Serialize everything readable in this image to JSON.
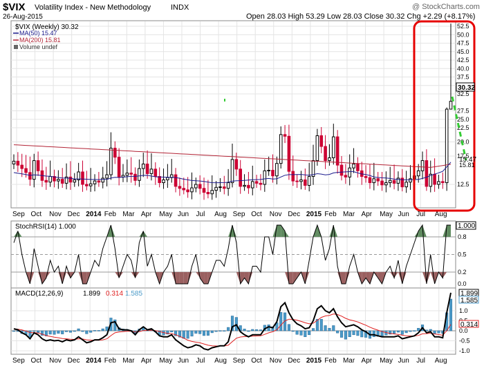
{
  "header": {
    "symbol": "$VIX",
    "name": "Volatility Index - New Methodology",
    "exchange": "INDX",
    "date": "26-Aug-2015",
    "ohlc": "Open 28.03  High 53.29  Low 28.03  Close 30.32  Chg +2.29 (+8.17%)",
    "watermark": "@ StockCharts.com"
  },
  "legend": {
    "main": "$VIX (Weekly) 30.32",
    "ma50": "MA(50) 15.47",
    "ma200": "MA(200) 15.81",
    "volume": "Volume undef"
  },
  "colors": {
    "up": "#000000",
    "down": "#cc0033",
    "ma50": "#1a1a8c",
    "ma200": "#b22234",
    "highlight": "#e60000",
    "arrow": "#33cc33",
    "rsi_fill_high": "#5f8a5f",
    "rsi_fill_low": "#9a6060",
    "macd_hist": "#4a9ac8",
    "signal": "#e02020"
  },
  "axis": {
    "months": [
      "Sep",
      "Oct",
      "Nov",
      "Dec",
      "2014",
      "Feb",
      "Mar",
      "Apr",
      "May",
      "Jun",
      "Jul",
      "Aug",
      "Sep",
      "Oct",
      "Nov",
      "Dec",
      "2015",
      "Feb",
      "Mar",
      "Apr",
      "May",
      "Jun",
      "Jul",
      "Aug"
    ],
    "price_ticks": [
      "52.5",
      "50.0",
      "47.5",
      "45.0",
      "42.5",
      "40.0",
      "37.5",
      "35.0",
      "32.5",
      "27.5",
      "25.0",
      "22.5",
      "20.0",
      "17.5",
      "12.5"
    ],
    "last_price_tag": "30.32",
    "ma_tag": "15.47",
    "ma_tag2": "15.81"
  },
  "stoch": {
    "label": "StochRSI(14) 1.000",
    "ticks": [
      "0.8",
      "0.5",
      "0.2",
      "0.0"
    ],
    "value_tag": "1.000"
  },
  "macd": {
    "label": "MACD(12,26,9)",
    "v1": "1.899",
    "v2": "0.314",
    "v3": "1.585",
    "ticks": [
      "1.0",
      "0.5",
      "0.0",
      "-0.5",
      "-1.0"
    ]
  },
  "chart_data": [
    {
      "type": "candlestick",
      "title": "$VIX (Weekly)",
      "x_range": [
        "2013-09",
        "2015-08-26"
      ],
      "ylim": [
        10,
        53.5
      ],
      "closes": [
        16.6,
        15.9,
        15.3,
        14.6,
        13.4,
        16.7,
        14.9,
        13.2,
        12.9,
        13.9,
        13.1,
        13.4,
        12.7,
        13.8,
        12.9,
        13.3,
        14.7,
        12.5,
        12.2,
        12.6,
        13.1,
        12.9,
        13.6,
        14.2,
        18.9,
        17.3,
        13.8,
        14.1,
        14.5,
        14.3,
        13.2,
        15.3,
        16.1,
        14.4,
        15.2,
        13.9,
        12.8,
        13.3,
        13.7,
        14.2,
        12.1,
        11.7,
        11.4,
        11.0,
        11.8,
        12.5,
        11.7,
        10.9,
        10.6,
        11.3,
        11.9,
        12.0,
        11.7,
        12.8,
        16.9,
        15.2,
        12.1,
        12.3,
        11.8,
        13.0,
        12.7,
        12.5,
        14.9,
        15.0,
        14.0,
        16.2,
        21.3,
        21.0,
        14.8,
        13.1,
        13.0,
        13.3,
        12.3,
        13.9,
        16.7,
        21.1,
        19.2,
        16.7,
        17.2,
        20.9,
        15.9,
        14.1,
        13.8,
        15.4,
        16.1,
        14.9,
        13.9,
        13.7,
        12.8,
        13.5,
        13.1,
        12.4,
        12.8,
        13.2,
        12.7,
        13.6,
        12.0,
        12.9,
        13.5,
        14.0,
        14.9,
        16.7,
        12.1,
        14.3,
        12.5,
        13.0,
        12.8,
        28.0,
        30.32
      ],
      "ma50_last": 15.47,
      "ma200_last": 15.81
    },
    {
      "type": "line",
      "title": "StochRSI(14)",
      "ylim": [
        0,
        1
      ],
      "values": [
        0.7,
        0.9,
        0.5,
        0.2,
        0.0,
        0.6,
        0.3,
        0.0,
        0.1,
        0.4,
        0.2,
        0.3,
        0.0,
        0.3,
        0.1,
        0.2,
        0.5,
        0.0,
        0.0,
        0.2,
        0.4,
        0.3,
        0.6,
        0.8,
        1.0,
        0.6,
        0.1,
        0.3,
        0.5,
        0.4,
        0.1,
        0.7,
        0.9,
        0.3,
        0.5,
        0.2,
        0.0,
        0.2,
        0.3,
        0.5,
        0.0,
        0.0,
        0.0,
        0.0,
        0.3,
        0.5,
        0.1,
        0.0,
        0.0,
        0.2,
        0.4,
        0.4,
        0.3,
        0.6,
        1.0,
        0.7,
        0.0,
        0.1,
        0.0,
        0.3,
        0.3,
        0.2,
        0.8,
        0.8,
        0.5,
        1.0,
        1.0,
        0.9,
        0.0,
        0.0,
        0.1,
        0.2,
        0.0,
        0.4,
        0.8,
        1.0,
        0.8,
        0.4,
        0.6,
        1.0,
        0.3,
        0.0,
        0.0,
        0.3,
        0.5,
        0.2,
        0.0,
        0.1,
        0.0,
        0.2,
        0.1,
        0.0,
        0.2,
        0.3,
        0.1,
        0.4,
        0.0,
        0.3,
        0.5,
        0.7,
        0.9,
        1.0,
        0.0,
        0.5,
        0.0,
        0.2,
        0.1,
        1.0,
        1.0
      ]
    },
    {
      "type": "line",
      "title": "MACD(12,26,9)",
      "ylim": [
        -1.2,
        2.0
      ],
      "macd": [
        0.1,
        0.05,
        -0.1,
        -0.2,
        -0.4,
        -0.1,
        -0.2,
        -0.4,
        -0.5,
        -0.45,
        -0.5,
        -0.48,
        -0.55,
        -0.45,
        -0.5,
        -0.45,
        -0.3,
        -0.45,
        -0.6,
        -0.55,
        -0.45,
        -0.45,
        -0.35,
        -0.2,
        0.4,
        0.45,
        0.1,
        0.05,
        0.05,
        0.0,
        -0.2,
        0.05,
        0.2,
        0.05,
        0.1,
        -0.05,
        -0.25,
        -0.3,
        -0.3,
        -0.2,
        -0.45,
        -0.6,
        -0.75,
        -0.85,
        -0.8,
        -0.7,
        -0.75,
        -0.9,
        -0.95,
        -0.85,
        -0.8,
        -0.75,
        -0.75,
        -0.55,
        0.2,
        0.3,
        -0.05,
        -0.2,
        -0.3,
        -0.2,
        -0.2,
        -0.2,
        0.1,
        0.2,
        0.15,
        0.45,
        1.2,
        1.4,
        0.9,
        0.55,
        0.35,
        0.25,
        0.1,
        0.15,
        0.5,
        1.1,
        1.25,
        1.0,
        0.9,
        1.1,
        0.7,
        0.4,
        0.2,
        0.25,
        0.3,
        0.2,
        0.05,
        -0.05,
        -0.2,
        -0.2,
        -0.25,
        -0.3,
        -0.3,
        -0.3,
        -0.3,
        -0.25,
        -0.4,
        -0.35,
        -0.3,
        -0.25,
        -0.1,
        0.15,
        -0.1,
        -0.05,
        -0.3,
        -0.3,
        -0.35,
        0.9,
        1.899
      ],
      "signal": [
        0.1,
        0.08,
        0.04,
        -0.01,
        -0.09,
        -0.09,
        -0.11,
        -0.17,
        -0.24,
        -0.28,
        -0.32,
        -0.35,
        -0.39,
        -0.4,
        -0.42,
        -0.43,
        -0.4,
        -0.41,
        -0.45,
        -0.47,
        -0.47,
        -0.47,
        -0.45,
        -0.4,
        -0.24,
        -0.1,
        -0.06,
        -0.04,
        -0.02,
        -0.02,
        -0.06,
        -0.04,
        0.01,
        0.02,
        0.03,
        0.01,
        -0.04,
        -0.09,
        -0.13,
        -0.14,
        -0.2,
        -0.28,
        -0.37,
        -0.47,
        -0.53,
        -0.57,
        -0.6,
        -0.66,
        -0.72,
        -0.75,
        -0.76,
        -0.76,
        -0.76,
        -0.72,
        -0.54,
        -0.37,
        -0.31,
        -0.29,
        -0.29,
        -0.27,
        -0.26,
        -0.25,
        -0.18,
        -0.1,
        -0.05,
        0.05,
        0.28,
        0.5,
        0.58,
        0.57,
        0.53,
        0.47,
        0.4,
        0.35,
        0.38,
        0.52,
        0.67,
        0.74,
        0.77,
        0.84,
        0.81,
        0.73,
        0.62,
        0.55,
        0.5,
        0.44,
        0.36,
        0.28,
        0.18,
        0.1,
        0.03,
        -0.04,
        -0.09,
        -0.13,
        -0.16,
        -0.18,
        -0.22,
        -0.25,
        -0.26,
        -0.26,
        -0.23,
        -0.15,
        -0.14,
        -0.12,
        -0.16,
        -0.19,
        -0.22,
        0.0,
        0.314
      ]
    }
  ]
}
